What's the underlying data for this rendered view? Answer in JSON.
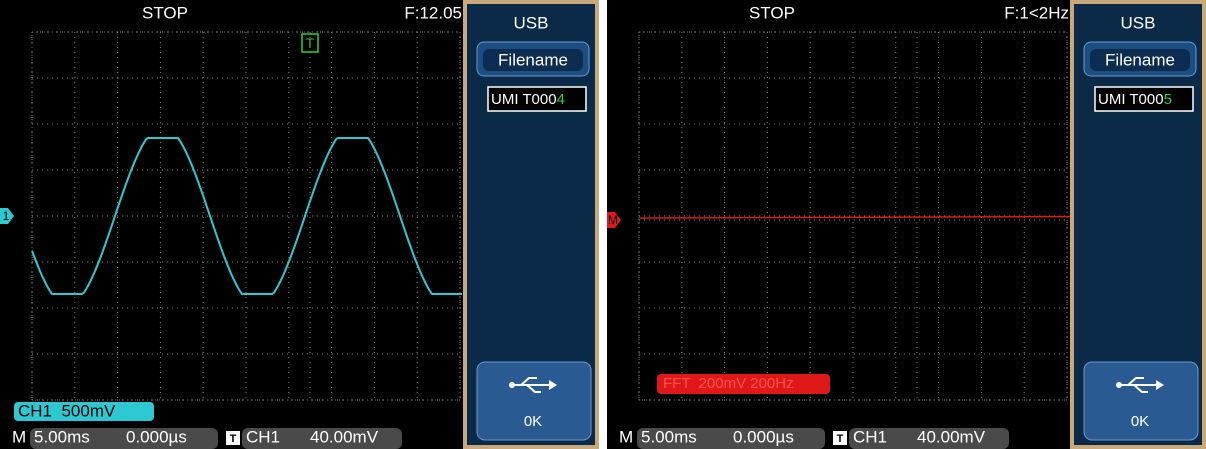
{
  "screens": [
    {
      "status": "STOP",
      "frequency": "F:12.05",
      "menu": {
        "title": "USB",
        "button": "Filename",
        "filename_prefix": "UMI T000",
        "filename_digit": "4",
        "ok": "0K"
      },
      "channel_label": "CH1  500mV",
      "channel_marker": "1",
      "trigger_marker": "T",
      "bottom": {
        "m": "M",
        "timebase": "5.00ms",
        "position": "0.000µs",
        "trigger_icon": "T",
        "trigger_source": "CH1",
        "trigger_level": "40.00mV"
      }
    },
    {
      "status": "STOP",
      "frequency": "F:1<2Hz",
      "menu": {
        "title": "USB",
        "button": "Filename",
        "filename_prefix": "UMI T000",
        "filename_digit": "5",
        "ok": "0K"
      },
      "channel_label": "FFT  200mV 200Hz",
      "channel_marker": "M",
      "bottom": {
        "m": "M",
        "timebase": "5.00ms",
        "position": "0.000µs",
        "trigger_icon": "T",
        "trigger_source": "CH1",
        "trigger_level": "40.00mV"
      }
    }
  ]
}
